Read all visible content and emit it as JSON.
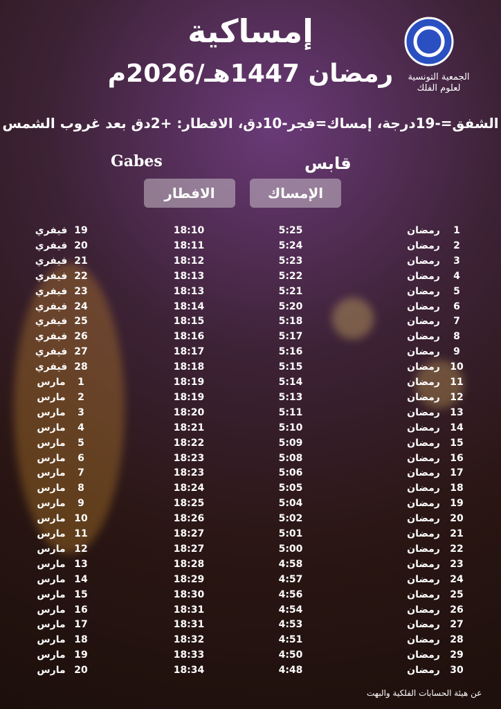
{
  "header": {
    "title": "إمساكية",
    "subtitle": "رمضان 1447هـ/2026م",
    "organization": [
      "الجمعية التونسية",
      "لعلوم الفلك"
    ],
    "settings": "الشفق=-19درجة، إمساك=فجر-10دق، الافطار: +2دق بعد غروب الشمس",
    "city_ar": "قابس",
    "city_en": "Gabes"
  },
  "table": {
    "columns": [
      "الإمساك",
      "الافطار"
    ],
    "rows": [
      [
        1,
        "رمضان",
        "5:25",
        "18:10",
        19,
        "فيفري"
      ],
      [
        2,
        "رمضان",
        "5:24",
        "18:11",
        20,
        "فيفري"
      ],
      [
        3,
        "رمضان",
        "5:23",
        "18:12",
        21,
        "فيفري"
      ],
      [
        4,
        "رمضان",
        "5:22",
        "18:13",
        22,
        "فيفري"
      ],
      [
        5,
        "رمضان",
        "5:21",
        "18:13",
        23,
        "فيفري"
      ],
      [
        6,
        "رمضان",
        "5:20",
        "18:14",
        24,
        "فيفري"
      ],
      [
        7,
        "رمضان",
        "5:18",
        "18:15",
        25,
        "فيفري"
      ],
      [
        8,
        "رمضان",
        "5:17",
        "18:16",
        26,
        "فيفري"
      ],
      [
        9,
        "رمضان",
        "5:16",
        "18:17",
        27,
        "فيفري"
      ],
      [
        10,
        "رمضان",
        "5:15",
        "18:18",
        28,
        "فيفري"
      ],
      [
        11,
        "رمضان",
        "5:14",
        "18:19",
        1,
        "مارس"
      ],
      [
        12,
        "رمضان",
        "5:13",
        "18:19",
        2,
        "مارس"
      ],
      [
        13,
        "رمضان",
        "5:11",
        "18:20",
        3,
        "مارس"
      ],
      [
        14,
        "رمضان",
        "5:10",
        "18:21",
        4,
        "مارس"
      ],
      [
        15,
        "رمضان",
        "5:09",
        "18:22",
        5,
        "مارس"
      ],
      [
        16,
        "رمضان",
        "5:08",
        "18:23",
        6,
        "مارس"
      ],
      [
        17,
        "رمضان",
        "5:06",
        "18:23",
        7,
        "مارس"
      ],
      [
        18,
        "رمضان",
        "5:05",
        "18:24",
        8,
        "مارس"
      ],
      [
        19,
        "رمضان",
        "5:04",
        "18:25",
        9,
        "مارس"
      ],
      [
        20,
        "رمضان",
        "5:02",
        "18:26",
        10,
        "مارس"
      ],
      [
        21,
        "رمضان",
        "5:01",
        "18:27",
        11,
        "مارس"
      ],
      [
        22,
        "رمضان",
        "5:00",
        "18:27",
        12,
        "مارس"
      ],
      [
        23,
        "رمضان",
        "4:58",
        "18:28",
        13,
        "مارس"
      ],
      [
        24,
        "رمضان",
        "4:57",
        "18:29",
        14,
        "مارس"
      ],
      [
        25,
        "رمضان",
        "4:56",
        "18:30",
        15,
        "مارس"
      ],
      [
        26,
        "رمضان",
        "4:54",
        "18:31",
        16,
        "مارس"
      ],
      [
        27,
        "رمضان",
        "4:53",
        "18:31",
        17,
        "مارس"
      ],
      [
        28,
        "رمضان",
        "4:51",
        "18:32",
        18,
        "مارس"
      ],
      [
        29,
        "رمضان",
        "4:50",
        "18:33",
        19,
        "مارس"
      ],
      [
        30,
        "رمضان",
        "4:48",
        "18:34",
        20,
        "مارس"
      ]
    ]
  },
  "footer": "عن هيئة الحسابات الفلكية والبهت"
}
